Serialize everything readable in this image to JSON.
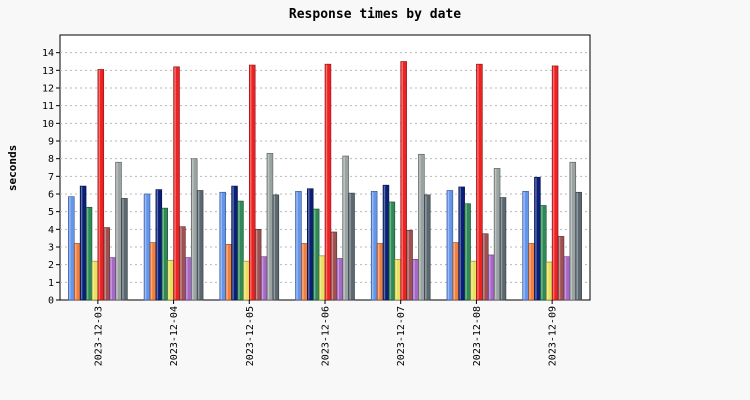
{
  "chart_data": {
    "type": "bar",
    "title": "Response times by date",
    "xlabel": "",
    "ylabel": "seconds",
    "ylim": [
      0,
      15
    ],
    "yticks": [
      0,
      1,
      2,
      3,
      4,
      5,
      6,
      7,
      8,
      9,
      10,
      11,
      12,
      13,
      14
    ],
    "grid": true,
    "categories": [
      "2023-12-03",
      "2023-12-04",
      "2023-12-05",
      "2023-12-06",
      "2023-12-07",
      "2023-12-08",
      "2023-12-09"
    ],
    "series": [
      {
        "color": "#6495ed",
        "values": [
          5.85,
          6.0,
          6.1,
          6.15,
          6.15,
          6.2,
          6.15
        ]
      },
      {
        "color": "#f08040",
        "values": [
          3.2,
          3.25,
          3.15,
          3.2,
          3.2,
          3.25,
          3.2
        ]
      },
      {
        "color": "#0a1f78",
        "values": [
          6.45,
          6.25,
          6.45,
          6.3,
          6.5,
          6.4,
          6.95
        ]
      },
      {
        "color": "#2e8b57",
        "values": [
          5.25,
          5.2,
          5.6,
          5.15,
          5.55,
          5.45,
          5.35
        ]
      },
      {
        "color": "#e8e060",
        "values": [
          2.2,
          2.25,
          2.2,
          2.5,
          2.3,
          2.2,
          2.15
        ]
      },
      {
        "color": "#ee2222",
        "values": [
          13.05,
          13.2,
          13.3,
          13.35,
          13.5,
          13.35,
          13.25
        ]
      },
      {
        "color": "#a05050",
        "values": [
          4.1,
          4.15,
          4.0,
          3.85,
          3.95,
          3.75,
          3.6
        ]
      },
      {
        "color": "#a868c8",
        "values": [
          2.4,
          2.4,
          2.45,
          2.35,
          2.3,
          2.55,
          2.45
        ]
      },
      {
        "color": "#9aa2a2",
        "values": [
          7.8,
          8.0,
          8.3,
          8.15,
          8.25,
          7.45,
          7.8
        ]
      },
      {
        "color": "#5a6870",
        "values": [
          5.75,
          6.2,
          5.95,
          6.05,
          5.95,
          5.8,
          6.1
        ]
      }
    ]
  }
}
